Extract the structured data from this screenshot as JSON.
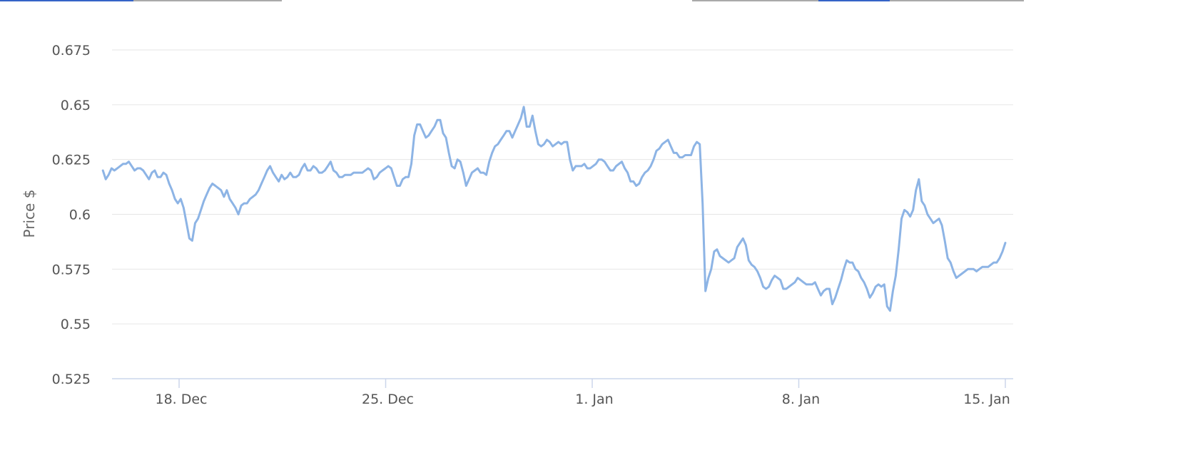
{
  "colors": {
    "line": "#8db4e5",
    "grid": "#e6e6e6",
    "axis": "#ccd6eb",
    "label": "#555555",
    "tab_active": "#3563c7",
    "tab_inactive": "#aaaaaa"
  },
  "chart_data": {
    "type": "line",
    "title": "",
    "xlabel": "",
    "ylabel": "Price $",
    "ylim": [
      0.525,
      0.675
    ],
    "yticks": [
      "0.675",
      "0.65",
      "0.625",
      "0.6",
      "0.575",
      "0.55",
      "0.525"
    ],
    "xticks": [
      "18. Dec",
      "25. Dec",
      "1. Jan",
      "8. Jan",
      "15. Jan"
    ],
    "x_start": "2023-12-15 10:00",
    "x_end": "2024-01-15",
    "grid": true,
    "legend": "none",
    "series": [
      {
        "values": [
          0.62,
          0.616,
          0.618,
          0.621,
          0.62,
          0.621,
          0.622,
          0.623,
          0.623,
          0.624,
          0.622,
          0.62,
          0.621,
          0.621,
          0.62,
          0.618,
          0.616,
          0.619,
          0.62,
          0.617,
          0.617,
          0.619,
          0.618,
          0.614,
          0.611,
          0.607,
          0.605,
          0.607,
          0.603,
          0.596,
          0.589,
          0.588,
          0.596,
          0.598,
          0.602,
          0.606,
          0.609,
          0.612,
          0.614,
          0.613,
          0.612,
          0.611,
          0.608,
          0.611,
          0.607,
          0.605,
          0.603,
          0.6,
          0.604,
          0.605,
          0.605,
          0.607,
          0.608,
          0.609,
          0.611,
          0.614,
          0.617,
          0.62,
          0.622,
          0.619,
          0.617,
          0.615,
          0.618,
          0.616,
          0.617,
          0.619,
          0.617,
          0.617,
          0.618,
          0.621,
          0.623,
          0.62,
          0.62,
          0.622,
          0.621,
          0.619,
          0.619,
          0.62,
          0.622,
          0.624,
          0.62,
          0.619,
          0.617,
          0.617,
          0.618,
          0.618,
          0.618,
          0.619,
          0.619,
          0.619,
          0.619,
          0.62,
          0.621,
          0.62,
          0.616,
          0.617,
          0.619,
          0.62,
          0.621,
          0.622,
          0.621,
          0.617,
          0.613,
          0.613,
          0.616,
          0.617,
          0.617,
          0.623,
          0.636,
          0.641,
          0.641,
          0.638,
          0.635,
          0.636,
          0.638,
          0.64,
          0.643,
          0.643,
          0.637,
          0.635,
          0.628,
          0.622,
          0.621,
          0.625,
          0.624,
          0.619,
          0.613,
          0.616,
          0.619,
          0.62,
          0.621,
          0.619,
          0.619,
          0.618,
          0.624,
          0.628,
          0.631,
          0.632,
          0.634,
          0.636,
          0.638,
          0.638,
          0.635,
          0.638,
          0.641,
          0.644,
          0.649,
          0.64,
          0.64,
          0.645,
          0.638,
          0.632,
          0.631,
          0.632,
          0.634,
          0.633,
          0.631,
          0.632,
          0.633,
          0.632,
          0.633,
          0.633,
          0.625,
          0.62,
          0.622,
          0.622,
          0.622,
          0.623,
          0.621,
          0.621,
          0.622,
          0.623,
          0.625,
          0.625,
          0.624,
          0.622,
          0.62,
          0.62,
          0.622,
          0.623,
          0.624,
          0.621,
          0.619,
          0.615,
          0.615,
          0.613,
          0.614,
          0.617,
          0.619,
          0.62,
          0.622,
          0.625,
          0.629,
          0.63,
          0.632,
          0.633,
          0.634,
          0.631,
          0.628,
          0.628,
          0.626,
          0.626,
          0.627,
          0.627,
          0.627,
          0.631,
          0.633,
          0.632,
          0.605,
          0.565,
          0.571,
          0.575,
          0.583,
          0.584,
          0.581,
          0.58,
          0.579,
          0.578,
          0.579,
          0.58,
          0.585,
          0.587,
          0.589,
          0.586,
          0.579,
          0.577,
          0.576,
          0.574,
          0.571,
          0.567,
          0.566,
          0.567,
          0.57,
          0.572,
          0.571,
          0.57,
          0.566,
          0.566,
          0.567,
          0.568,
          0.569,
          0.571,
          0.57,
          0.569,
          0.568,
          0.568,
          0.568,
          0.569,
          0.566,
          0.563,
          0.565,
          0.566,
          0.566,
          0.559,
          0.562,
          0.566,
          0.57,
          0.575,
          0.579,
          0.578,
          0.578,
          0.575,
          0.574,
          0.571,
          0.569,
          0.566,
          0.562,
          0.564,
          0.567,
          0.568,
          0.567,
          0.568,
          0.558,
          0.556,
          0.565,
          0.572,
          0.584,
          0.598,
          0.602,
          0.601,
          0.599,
          0.602,
          0.611,
          0.616,
          0.606,
          0.604,
          0.6,
          0.598,
          0.596,
          0.597,
          0.598,
          0.595,
          0.588,
          0.58,
          0.578,
          0.574,
          0.571,
          0.572,
          0.573,
          0.574,
          0.575,
          0.575,
          0.575,
          0.574,
          0.575,
          0.576,
          0.576,
          0.576,
          0.577,
          0.578,
          0.578,
          0.58,
          0.583,
          0.587
        ]
      }
    ]
  }
}
